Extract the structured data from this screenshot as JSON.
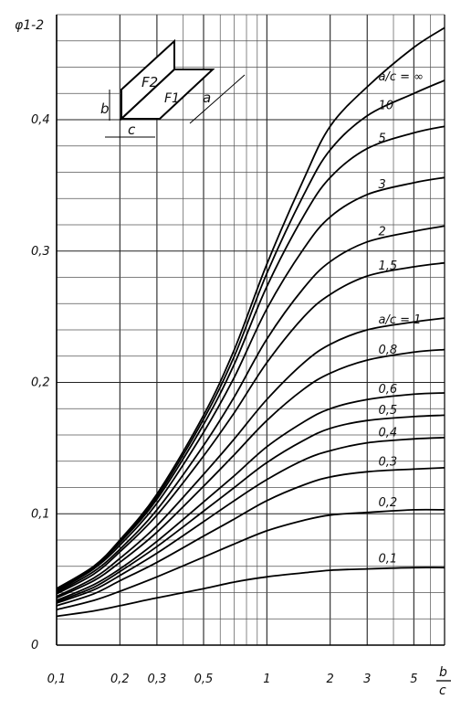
{
  "chart_data": {
    "type": "line",
    "x_scale": "log",
    "xlim": [
      0.1,
      7
    ],
    "ylim": [
      0,
      0.48
    ],
    "x_ticks": [
      {
        "v": 0.1,
        "label": "0,1"
      },
      {
        "v": 0.2,
        "label": "0,2"
      },
      {
        "v": 0.3,
        "label": "0,3"
      },
      {
        "v": 0.5,
        "label": "0,5"
      },
      {
        "v": 1,
        "label": "1"
      },
      {
        "v": 2,
        "label": "2"
      },
      {
        "v": 3,
        "label": "3"
      },
      {
        "v": 5,
        "label": "5"
      }
    ],
    "y_ticks": [
      {
        "v": 0,
        "label": "0"
      },
      {
        "v": 0.1,
        "label": "0,1"
      },
      {
        "v": 0.2,
        "label": "0,2"
      },
      {
        "v": 0.3,
        "label": "0,3"
      },
      {
        "v": 0.4,
        "label": "0,4"
      }
    ],
    "ylabel": "φ1-2",
    "xlabel_num": "b",
    "xlabel_den": "c",
    "grid": true,
    "x": [
      0.1,
      0.15,
      0.2,
      0.3,
      0.5,
      0.7,
      1,
      1.5,
      2,
      3,
      5,
      7
    ],
    "series": [
      {
        "name": "a/c = ∞",
        "values": [
          0.043,
          0.06,
          0.08,
          0.115,
          0.175,
          0.225,
          0.29,
          0.355,
          0.395,
          0.425,
          0.455,
          0.47
        ]
      },
      {
        "name": "10",
        "values": [
          0.043,
          0.06,
          0.079,
          0.113,
          0.172,
          0.22,
          0.283,
          0.343,
          0.377,
          0.403,
          0.42,
          0.43
        ]
      },
      {
        "name": "5",
        "values": [
          0.042,
          0.059,
          0.078,
          0.111,
          0.168,
          0.214,
          0.273,
          0.327,
          0.356,
          0.378,
          0.39,
          0.395
        ]
      },
      {
        "name": "3",
        "values": [
          0.041,
          0.058,
          0.076,
          0.108,
          0.162,
          0.204,
          0.256,
          0.302,
          0.326,
          0.343,
          0.352,
          0.356
        ]
      },
      {
        "name": "2",
        "values": [
          0.04,
          0.056,
          0.073,
          0.103,
          0.152,
          0.189,
          0.233,
          0.272,
          0.292,
          0.307,
          0.315,
          0.319
        ]
      },
      {
        "name": "1,5",
        "values": [
          0.039,
          0.054,
          0.071,
          0.099,
          0.144,
          0.177,
          0.215,
          0.25,
          0.267,
          0.281,
          0.288,
          0.291
        ]
      },
      {
        "name": "a/c = 1",
        "values": [
          0.037,
          0.051,
          0.066,
          0.091,
          0.13,
          0.157,
          0.187,
          0.215,
          0.229,
          0.24,
          0.246,
          0.249
        ]
      },
      {
        "name": "0,8",
        "values": [
          0.036,
          0.049,
          0.063,
          0.086,
          0.121,
          0.145,
          0.171,
          0.195,
          0.207,
          0.217,
          0.223,
          0.225
        ]
      },
      {
        "name": "0,6",
        "values": [
          0.034,
          0.046,
          0.058,
          0.079,
          0.109,
          0.129,
          0.151,
          0.17,
          0.18,
          0.187,
          0.191,
          0.192
        ]
      },
      {
        "name": "0,5",
        "values": [
          0.033,
          0.044,
          0.056,
          0.075,
          0.102,
          0.12,
          0.139,
          0.156,
          0.165,
          0.171,
          0.174,
          0.175
        ]
      },
      {
        "name": "0,4",
        "values": [
          0.032,
          0.042,
          0.053,
          0.07,
          0.094,
          0.11,
          0.126,
          0.141,
          0.148,
          0.154,
          0.157,
          0.158
        ]
      },
      {
        "name": "0,3",
        "values": [
          0.03,
          0.039,
          0.049,
          0.063,
          0.083,
          0.096,
          0.11,
          0.122,
          0.128,
          0.132,
          0.134,
          0.135
        ]
      },
      {
        "name": "0,2",
        "values": [
          0.027,
          0.034,
          0.041,
          0.052,
          0.067,
          0.077,
          0.087,
          0.095,
          0.099,
          0.101,
          0.103,
          0.103
        ]
      },
      {
        "name": "0,1",
        "values": [
          0.022,
          0.026,
          0.03,
          0.036,
          0.043,
          0.048,
          0.052,
          0.055,
          0.057,
          0.058,
          0.059,
          0.059
        ]
      }
    ]
  },
  "inset": {
    "f2": "F2",
    "f1": "F1",
    "a": "a",
    "b": "b",
    "c": "c"
  }
}
